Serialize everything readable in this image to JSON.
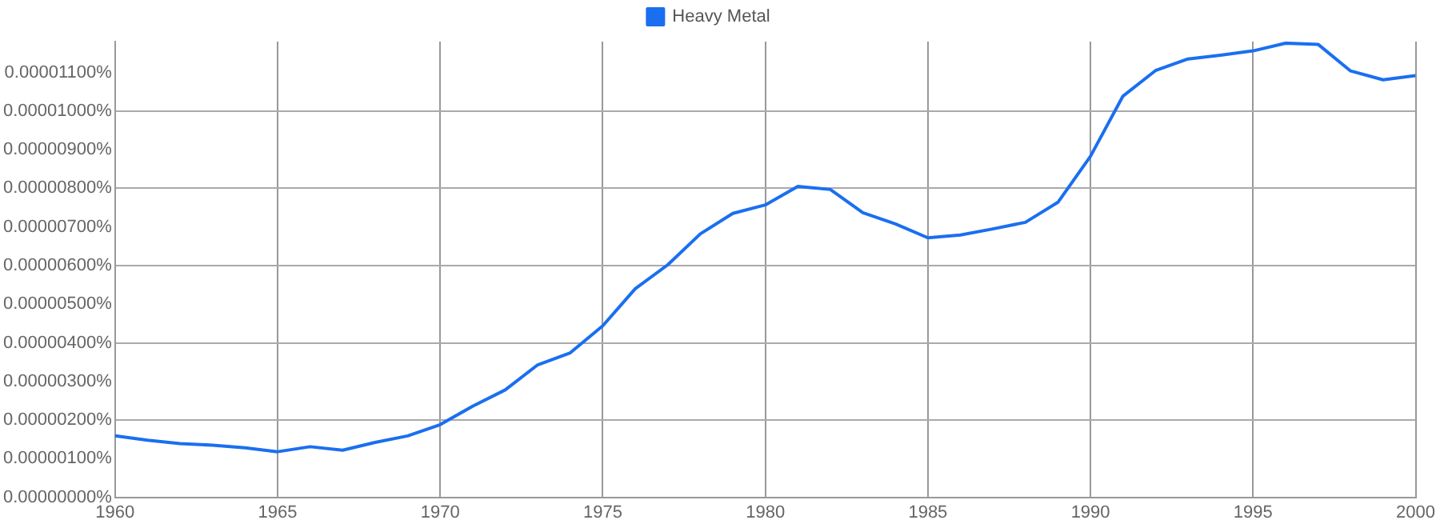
{
  "chart_data": {
    "type": "line",
    "x": [
      1960,
      1961,
      1962,
      1963,
      1964,
      1965,
      1966,
      1967,
      1968,
      1969,
      1970,
      1971,
      1972,
      1973,
      1974,
      1975,
      1976,
      1977,
      1978,
      1979,
      1980,
      1981,
      1982,
      1983,
      1984,
      1985,
      1986,
      1987,
      1988,
      1989,
      1990,
      1991,
      1992,
      1993,
      1994,
      1995,
      1996,
      1997,
      1998,
      1999,
      2000
    ],
    "series": [
      {
        "name": "Heavy Metal",
        "color": "#1a6ff0",
        "values": [
          1.59e-06,
          1.48e-06,
          1.39e-06,
          1.35e-06,
          1.28e-06,
          1.18e-06,
          1.31e-06,
          1.22e-06,
          1.42e-06,
          1.59e-06,
          1.88e-06,
          2.36e-06,
          2.78e-06,
          3.43e-06,
          3.74e-06,
          4.44e-06,
          5.4e-06,
          6.02e-06,
          6.82e-06,
          7.35e-06,
          7.57e-06,
          8.05e-06,
          7.97e-06,
          7.37e-06,
          7.08e-06,
          6.72e-06,
          6.79e-06,
          6.95e-06,
          7.12e-06,
          7.64e-06,
          8.83e-06,
          1.039e-05,
          1.105e-05,
          1.135e-05,
          1.145e-05,
          1.156e-05,
          1.176e-05,
          1.173e-05,
          1.104e-05,
          1.081e-05,
          1.092e-05
        ]
      }
    ],
    "xlim": [
      1960,
      2000
    ],
    "xticks": [
      1960,
      1965,
      1970,
      1975,
      1980,
      1985,
      1990,
      1995,
      2000
    ],
    "ylim": [
      0,
      1.18e-05
    ],
    "yticks": [
      {
        "value": 0,
        "label": "0.00000000%"
      },
      {
        "value": 1e-06,
        "label": "0.00000100%"
      },
      {
        "value": 2e-06,
        "label": "0.00000200%"
      },
      {
        "value": 3e-06,
        "label": "0.00000300%"
      },
      {
        "value": 4e-06,
        "label": "0.00000400%"
      },
      {
        "value": 5e-06,
        "label": "0.00000500%"
      },
      {
        "value": 6e-06,
        "label": "0.00000600%"
      },
      {
        "value": 7e-06,
        "label": "0.00000700%"
      },
      {
        "value": 8e-06,
        "label": "0.00000800%"
      },
      {
        "value": 9e-06,
        "label": "0.00000900%"
      },
      {
        "value": 1e-05,
        "label": "0.00001000%"
      },
      {
        "value": 1.1e-05,
        "label": "0.00001100%"
      }
    ],
    "grid": true,
    "legend": "top",
    "marker": "none",
    "line_style": "solid"
  }
}
